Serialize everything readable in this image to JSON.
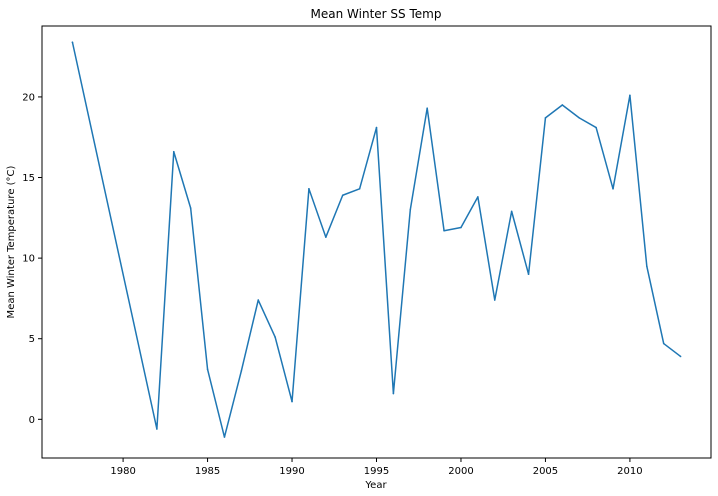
{
  "chart_data": {
    "type": "line",
    "title": "Mean Winter SS Temp",
    "xlabel": "Year",
    "ylabel": "Mean Winter Temperature (°C)",
    "xlim": [
      1975.2,
      2014.8
    ],
    "ylim": [
      -2.4,
      24.4
    ],
    "x_ticks": [
      1980,
      1985,
      1990,
      1995,
      2000,
      2005,
      2010
    ],
    "y_ticks": [
      0,
      5,
      10,
      15,
      20
    ],
    "grid": false,
    "line_color": "#1f77b4",
    "series": [
      {
        "x": [
          1977,
          1982,
          1983,
          1984,
          1985,
          1986,
          1987,
          1988,
          1989,
          1990,
          1991,
          1992,
          1993,
          1994,
          1995,
          1996,
          1997,
          1998,
          1999,
          2000,
          2001,
          2002,
          2003,
          2004,
          2005,
          2006,
          2007,
          2008,
          2009,
          2010,
          2011,
          2012,
          2013
        ],
        "values": [
          23.4,
          -0.6,
          16.6,
          13.1,
          3.1,
          -1.1,
          3.0,
          7.4,
          5.1,
          1.1,
          14.3,
          11.3,
          13.9,
          14.3,
          18.1,
          1.6,
          13.0,
          19.3,
          11.7,
          11.9,
          13.8,
          7.4,
          12.9,
          9.0,
          18.7,
          19.5,
          18.7,
          18.1,
          14.3,
          20.1,
          9.5,
          4.7,
          3.9
        ]
      }
    ]
  }
}
